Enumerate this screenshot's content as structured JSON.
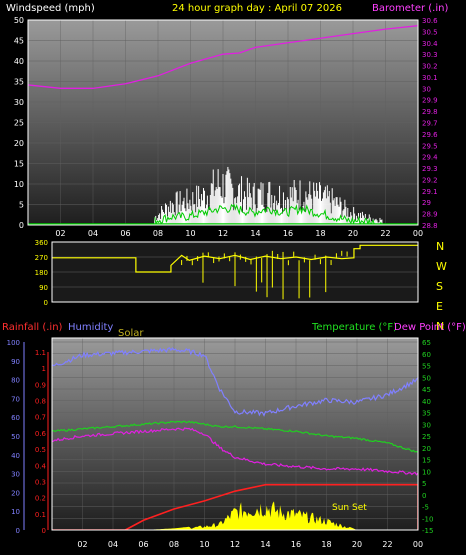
{
  "colors": {
    "background": "#000000",
    "plot_top": "#9a9a9a",
    "plot_bottom": "#1e1e1e",
    "wind": "#ffffff",
    "gust": "#ffffff",
    "wind_avg": "#00cc00",
    "barometer": "#e020e0",
    "direction": "#ffff00",
    "rainfall": "#ff2020",
    "humidity": "#8080ff",
    "solar": "#ffff00",
    "temperature": "#20d020",
    "dew_point": "#e020e0",
    "grid": "#606060",
    "frame": "#ffffff"
  },
  "header": {
    "wind_title": "Windspeed (mph)",
    "main_title": "24 hour graph day : April 07 2026",
    "baro_title": "Barometer (.in)"
  },
  "compass": [
    "N",
    "W",
    "S",
    "E",
    "N"
  ],
  "bottom_header": {
    "rain_title": "Rainfall (.in)",
    "humidity_title": "Humidity",
    "solar_title": "Solar",
    "temp_title": "Temperature (°F)",
    "dew_title": "Dew Point (°F)"
  },
  "annotation": "Sun Set",
  "chart_data": [
    {
      "type": "line",
      "x_ticks": [
        "02",
        "04",
        "06",
        "08",
        "10",
        "12",
        "14",
        "16",
        "18",
        "20",
        "22",
        "00"
      ],
      "ylabel_left": "Windspeed (mph)",
      "ylim_left": [
        0,
        50
      ],
      "yticks_left": [
        "0",
        "5",
        "10",
        "15",
        "20",
        "25",
        "30",
        "35",
        "40",
        "45",
        "50"
      ],
      "ylabel_right": "Barometer (.in)",
      "ylim_right": [
        28.8,
        30.6
      ],
      "yticks_right": [
        "28.8",
        "28.9",
        "29",
        "29.1",
        "29.2",
        "29.3",
        "29.4",
        "29.5",
        "29.6",
        "29.7",
        "29.8",
        "29.9",
        "30",
        "30.1",
        "30.2",
        "30.3",
        "30.4",
        "30.5",
        "30.6"
      ],
      "series": [
        {
          "axis": "right",
          "x": [
            0,
            2,
            4,
            6,
            8,
            10,
            12,
            13,
            14,
            16,
            18,
            20,
            22,
            24
          ],
          "values": [
            30.03,
            30.0,
            30.0,
            30.04,
            30.11,
            30.22,
            30.3,
            30.31,
            30.36,
            30.4,
            30.44,
            30.48,
            30.52,
            30.55
          ]
        },
        {
          "axis": "left",
          "x": [
            7.8,
            8.8,
            9.8,
            10.8,
            11.8,
            12.8,
            13.8,
            14.8,
            15.8,
            16.8,
            17.8,
            18.8,
            19.8,
            20.8,
            21.8
          ],
          "values": [
            3,
            8,
            9,
            11,
            16,
            13,
            11,
            12,
            11,
            12,
            11,
            9,
            5,
            3,
            2
          ]
        },
        {
          "axis": "left",
          "x": [
            7.8,
            8.8,
            9.8,
            10.8,
            11.8,
            12.8,
            13.8,
            14.8,
            15.8,
            16.8,
            17.8,
            18.8,
            19.8,
            20.8,
            21.8
          ],
          "values": [
            1,
            2,
            2,
            3,
            4,
            4,
            3,
            4,
            3,
            4,
            3,
            2,
            1,
            1,
            0
          ]
        }
      ]
    },
    {
      "type": "line",
      "x_ticks": [
        "02",
        "04",
        "06",
        "08",
        "10",
        "12",
        "14",
        "16",
        "18",
        "20",
        "22",
        "00"
      ],
      "ylim": [
        0,
        360
      ],
      "yticks": [
        "0",
        "90",
        "180",
        "270",
        "360"
      ],
      "series": [
        {
          "x": [
            0,
            5.5,
            5.5,
            7.8,
            7.8,
            8.5,
            9,
            10,
            11,
            12,
            13,
            14,
            15,
            16,
            17,
            18,
            19,
            19.8,
            19.8,
            20.2,
            20.2,
            24
          ],
          "values": [
            265,
            265,
            180,
            180,
            220,
            280,
            250,
            275,
            260,
            280,
            255,
            275,
            260,
            270,
            255,
            270,
            260,
            265,
            320,
            320,
            340,
            340
          ]
        }
      ]
    },
    {
      "type": "line",
      "x_ticks": [
        "02",
        "04",
        "06",
        "08",
        "10",
        "12",
        "14",
        "16",
        "18",
        "20",
        "22",
        "00"
      ],
      "ylabel_left": "Rainfall (.in)",
      "ylim_rain": [
        0,
        1.1
      ],
      "yticks_rain": [
        "0",
        "0.1",
        "0.2",
        "0.3",
        "0.4",
        "0.5",
        "0.6",
        "0.7",
        "0.8",
        "0.9",
        "1",
        "1.1"
      ],
      "ylim_humidity": [
        0,
        100
      ],
      "yticks_humidity": [
        "0",
        "10",
        "20",
        "30",
        "40",
        "50",
        "60",
        "70",
        "80",
        "90",
        "100"
      ],
      "ylabel_right": "Temperature (°F)",
      "ylim_temp": [
        -15,
        65
      ],
      "yticks_temp": [
        "-15",
        "-10",
        "-5",
        "0",
        "5",
        "10",
        "15",
        "20",
        "25",
        "30",
        "35",
        "40",
        "45",
        "50",
        "55",
        "60",
        "65"
      ],
      "series": [
        {
          "name": "Humidity",
          "axis": "humidity",
          "x": [
            0,
            2,
            4,
            6,
            8,
            9,
            10,
            11,
            12,
            14,
            16,
            18,
            20,
            22,
            24
          ],
          "values": [
            87,
            93,
            94,
            95,
            96,
            95,
            93,
            75,
            63,
            62,
            66,
            69,
            68,
            72,
            80
          ]
        },
        {
          "name": "Temperature (°F)",
          "axis": "temp",
          "x": [
            0,
            2,
            4,
            6,
            8,
            9,
            10,
            11,
            12,
            14,
            16,
            18,
            20,
            22,
            24
          ],
          "values": [
            27,
            28,
            29,
            30,
            31,
            31,
            30,
            29,
            29,
            28,
            27,
            25,
            24,
            22,
            18
          ]
        },
        {
          "name": "Dew Point (°F)",
          "axis": "temp",
          "x": [
            0,
            2,
            4,
            6,
            8,
            9,
            10,
            11,
            12,
            14,
            16,
            18,
            20,
            22,
            24
          ],
          "values": [
            23,
            25,
            26,
            27,
            28,
            28,
            26,
            20,
            16,
            13,
            12,
            11,
            11,
            10,
            9
          ]
        },
        {
          "name": "Rainfall (.in)",
          "axis": "rain",
          "x": [
            0,
            4.8,
            6,
            8,
            10,
            12,
            14,
            16,
            18,
            20,
            22,
            24
          ],
          "values": [
            0,
            0,
            0.06,
            0.13,
            0.18,
            0.24,
            0.28,
            0.28,
            0.28,
            0.28,
            0.28,
            0.28
          ]
        },
        {
          "name": "Solar",
          "axis": "rain",
          "x": [
            0,
            6,
            7,
            8,
            9,
            10,
            11,
            12,
            13,
            14,
            15,
            16,
            17,
            18,
            19,
            20,
            24
          ],
          "values": [
            0,
            0,
            0.005,
            0.01,
            0.02,
            0.03,
            0.05,
            0.16,
            0.19,
            0.21,
            0.16,
            0.14,
            0.11,
            0.08,
            0.04,
            0,
            0
          ]
        }
      ]
    }
  ]
}
